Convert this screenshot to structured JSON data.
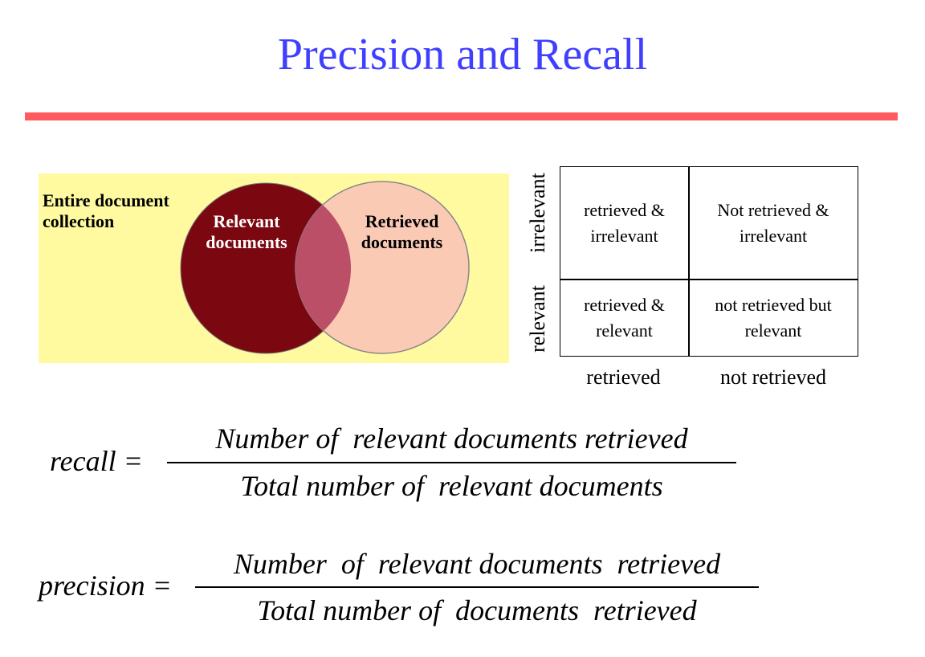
{
  "title": "Precision and Recall",
  "venn": {
    "collection_label": [
      "Entire document",
      "collection"
    ],
    "relevant_label": [
      "Relevant",
      "documents"
    ],
    "retrieved_label": [
      "Retrieved",
      "documents"
    ],
    "colors": {
      "background": "#fffaa0",
      "relevant": "#7b0810",
      "retrieved": "#fbcab5",
      "overlap": "#bb4f68"
    }
  },
  "matrix": {
    "row_labels": [
      "irrelevant",
      "relevant"
    ],
    "col_labels": [
      "retrieved",
      "not retrieved"
    ],
    "cells": [
      [
        "retrieved &\nirrelevant",
        "Not retrieved &\nirrelevant"
      ],
      [
        "retrieved &\nrelevant",
        "not retrieved but\nrelevant"
      ]
    ]
  },
  "formulas": {
    "recall": {
      "lhs": "recall =",
      "numerator": "Number of  relevant documents retrieved",
      "denominator": "Total number of  relevant documents"
    },
    "precision": {
      "lhs": "precision =",
      "numerator": "Number  of  relevant documents  retrieved",
      "denominator": "Total number of  documents  retrieved"
    }
  }
}
